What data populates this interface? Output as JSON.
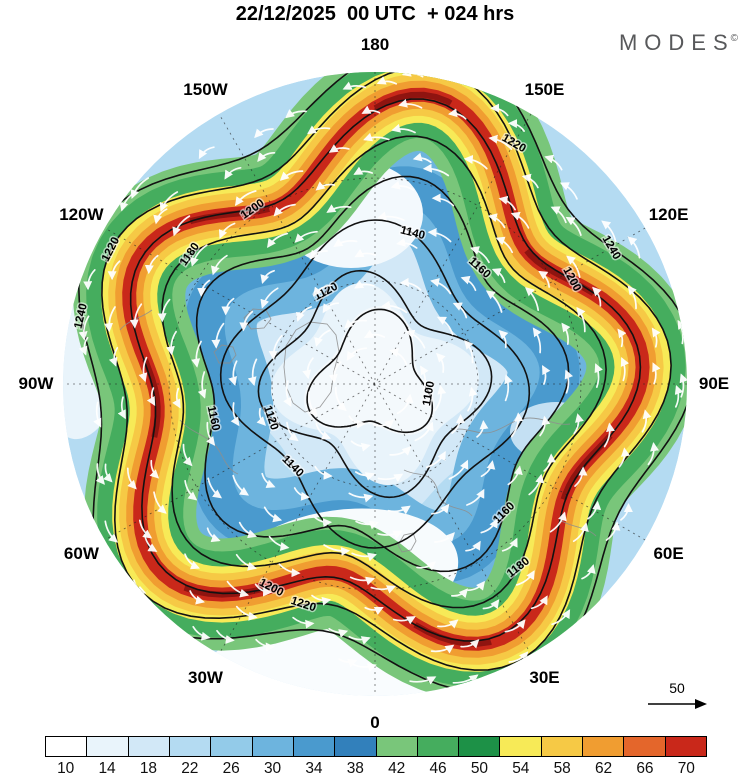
{
  "header": {
    "title": "22/12/2025  00 UTC  + 024 hrs",
    "brand": "MODES",
    "brand_mark": "©"
  },
  "chart_data": {
    "type": "heatmap",
    "title": "22/12/2025 00 UTC + 024 hrs",
    "description": "Northern Hemisphere polar stereographic chart: wind speed shading (colorbar 10-70), black height contours 1100-1240, white wind streamline arrows",
    "projection": "polar stereographic, North Pole centered, 0 longitude at bottom",
    "longitude_labels": [
      {
        "label": "180",
        "angle": 0
      },
      {
        "label": "150E",
        "angle": 30
      },
      {
        "label": "120E",
        "angle": 60
      },
      {
        "label": "90E",
        "angle": 90
      },
      {
        "label": "60E",
        "angle": 120
      },
      {
        "label": "30E",
        "angle": 150
      },
      {
        "label": "0",
        "angle": 180
      },
      {
        "label": "30W",
        "angle": 210
      },
      {
        "label": "60W",
        "angle": 240
      },
      {
        "label": "90W",
        "angle": 270
      },
      {
        "label": "120W",
        "angle": 300
      },
      {
        "label": "150W",
        "angle": 330
      }
    ],
    "contour_levels": [
      1100,
      1120,
      1140,
      1160,
      1180,
      1200,
      1220,
      1240
    ],
    "colorbar": {
      "tick_values": [
        10,
        14,
        18,
        22,
        26,
        30,
        34,
        38,
        42,
        46,
        50,
        54,
        58,
        62,
        66,
        70
      ],
      "cell_colors": [
        "#ffffff",
        "#e9f4fb",
        "#d2e8f7",
        "#b4dbf2",
        "#93cbe9",
        "#6db4de",
        "#4a9ace",
        "#3280bb",
        "#79c67a",
        "#45ad5e",
        "#1d9147",
        "#f7ea57",
        "#f6c945",
        "#f09d31",
        "#e4662b",
        "#c9281a"
      ]
    },
    "reference_arrow": {
      "label": "50"
    }
  }
}
